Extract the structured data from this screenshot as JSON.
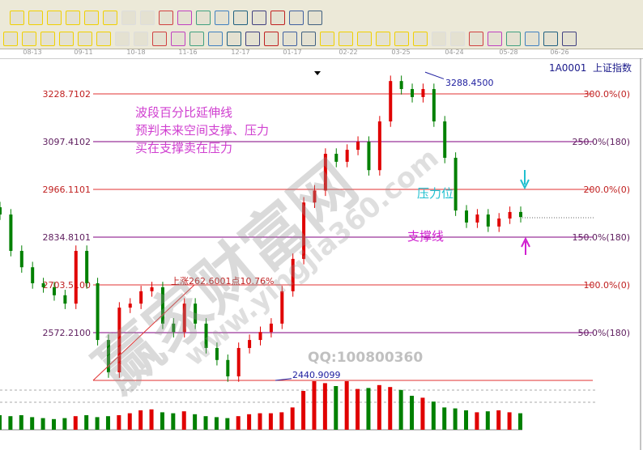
{
  "header": {
    "symbol": "1A0001",
    "name": "上证指数"
  },
  "toolbar_row1": {
    "icons": [
      "diamond-left",
      "diamond-right",
      "diamond-both",
      "diamond-in",
      "diamond-star",
      "diamond-cross",
      "hand",
      "crosshair",
      "line-draw",
      "section",
      "cycle",
      "calendar",
      "calculator",
      "notes",
      "save",
      "network",
      "computer"
    ]
  },
  "toolbar_row2": {
    "icons": [
      "spiral",
      "box",
      "parallel",
      "shen",
      "ying",
      "grid",
      "width",
      "bracket",
      "fan",
      "box-fan",
      "square-fan",
      "angle",
      "zigzag",
      "grid2",
      "grid3",
      "lines",
      "percent-list",
      "pct-line",
      "percent",
      "percent-lines",
      "gold-circle",
      "gold-lines",
      "pen",
      "wave",
      "gold",
      "j-angle",
      "f-angle",
      "gold-angle",
      "shen-angle",
      "ying-angle",
      "si-angle"
    ]
  },
  "date_axis": [
    "08-13",
    "09-11",
    "10-18",
    "11-16",
    "12-17",
    "01-17",
    "02-22",
    "03-25",
    "04-24",
    "05-28",
    "06-26"
  ],
  "annotations": {
    "note_lines": [
      "波段百分比延伸线",
      "预判未来空间支撑、压力",
      "买在支撑卖在压力"
    ],
    "rise": "上涨262.6001点10.76%",
    "high": "3288.4500",
    "low": "2440.9099",
    "pressure": "压力位",
    "support": "支撑线",
    "qq": "QQ:100800360",
    "watermark": "赢家财富网",
    "watermark_url": "www.yingjia360.com"
  },
  "colors": {
    "up": "#e00000",
    "down": "#008000",
    "red_line": "#e03030",
    "purple_line": "#800080",
    "note": "#d040d0",
    "pressure": "#20c0d0",
    "support": "#d020d0",
    "high_low": "#2020a0"
  },
  "chart_data": {
    "type": "candlestick",
    "ylim": [
      2440.9099,
      3288.45
    ],
    "levels": [
      {
        "price": "3228.7102",
        "pct": "300.0%(0)",
        "color": "red"
      },
      {
        "price": "3097.4102",
        "pct": "250.0%(180)",
        "color": "purple"
      },
      {
        "price": "2966.1101",
        "pct": "200.0%(0)",
        "color": "red"
      },
      {
        "price": "2834.8101",
        "pct": "150.0%(180)",
        "color": "purple"
      },
      {
        "price": "2703.5100",
        "pct": "100.0%(0)",
        "color": "red"
      },
      {
        "price": "2572.2100",
        "pct": "50.0%(180)",
        "color": "purple"
      },
      {
        "price": "2440.9099",
        "pct": "",
        "color": "red"
      }
    ],
    "closes": [
      2897,
      2797,
      2752,
      2708,
      2697,
      2675,
      2652,
      2797,
      2708,
      2552,
      2463,
      2641,
      2652,
      2686,
      2697,
      2597,
      2574,
      2652,
      2597,
      2530,
      2497,
      2452,
      2530,
      2552,
      2574,
      2597,
      2686,
      2775,
      2930,
      2963,
      3064,
      3042,
      3075,
      3097,
      3019,
      3153,
      3264,
      3242,
      3220,
      3242,
      3153,
      3053,
      2908,
      2875,
      2897,
      2864,
      2886,
      2904,
      2890
    ],
    "volumes": [
      30,
      28,
      30,
      26,
      24,
      22,
      24,
      28,
      30,
      26,
      28,
      30,
      34,
      40,
      42,
      36,
      34,
      38,
      32,
      28,
      26,
      24,
      28,
      32,
      34,
      34,
      36,
      46,
      80,
      100,
      96,
      90,
      100,
      84,
      86,
      92,
      88,
      82,
      70,
      66,
      58,
      46,
      44,
      40,
      36,
      38,
      40,
      36,
      34
    ]
  }
}
